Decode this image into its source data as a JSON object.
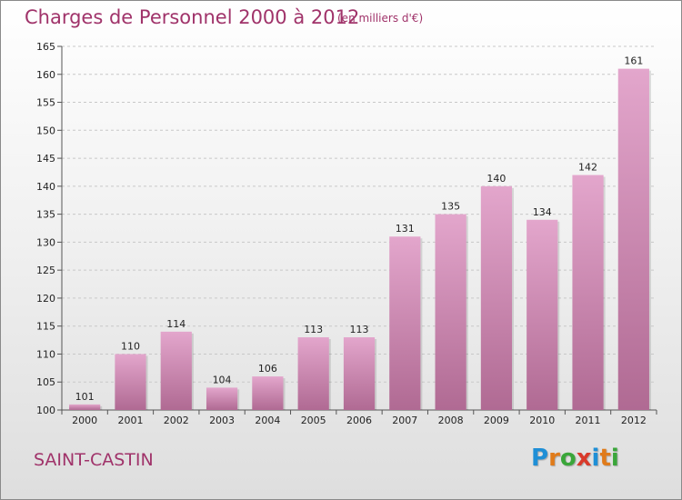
{
  "title": "Charges de Personnel 2000 à 2012",
  "subtitle": "(en milliers d'€)",
  "commune": "SAINT-CASTIN",
  "logo": {
    "letters": [
      "P",
      "r",
      "o",
      "x",
      "i",
      "t",
      "i"
    ],
    "colors": [
      "#1f8fd6",
      "#e07b1a",
      "#3aa63a",
      "#d93a2b",
      "#1f8fd6",
      "#e07b1a",
      "#3aa63a"
    ]
  },
  "colors": {
    "bar_top": "#e3a6cc",
    "bar_bottom": "#b06a93",
    "grid": "#c8c8c8",
    "axis": "#555555",
    "text": "#222222",
    "accent": "#a0336a"
  },
  "chart_data": {
    "type": "bar",
    "categories": [
      "2000",
      "2001",
      "2002",
      "2003",
      "2004",
      "2005",
      "2006",
      "2007",
      "2008",
      "2009",
      "2010",
      "2011",
      "2012"
    ],
    "values": [
      101,
      110,
      114,
      104,
      106,
      113,
      113,
      131,
      135,
      140,
      134,
      142,
      161
    ],
    "ylim": [
      100,
      165
    ],
    "yticks": [
      100,
      105,
      110,
      115,
      120,
      125,
      130,
      135,
      140,
      145,
      150,
      155,
      160,
      165
    ],
    "grid": true,
    "data_labels": true
  }
}
